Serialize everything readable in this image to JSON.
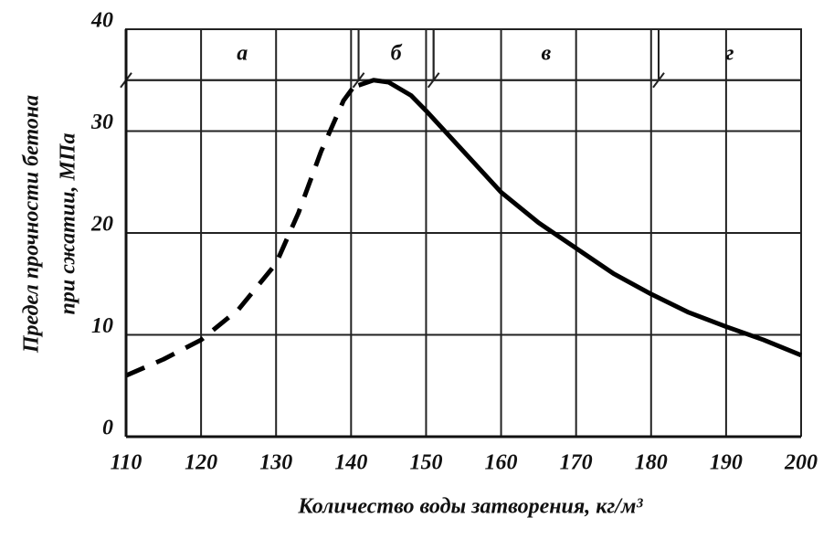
{
  "chart_data": {
    "type": "line",
    "y_label_lines": [
      "Предел прочности бетона",
      "при сжатии, МПа"
    ],
    "x_label": "Количество воды затворения, кг/м³",
    "xlim": [
      110,
      200
    ],
    "ylim": [
      0,
      40
    ],
    "xticks": [
      110,
      120,
      130,
      140,
      150,
      160,
      170,
      180,
      190,
      200
    ],
    "yticks": [
      0,
      10,
      20,
      30,
      40
    ],
    "grid": true,
    "zone_ylim": [
      35,
      40
    ],
    "zones": [
      {
        "label": "а",
        "from": 110,
        "to": 141
      },
      {
        "label": "б",
        "from": 141,
        "to": 151
      },
      {
        "label": "в",
        "from": 151,
        "to": 181
      },
      {
        "label": "г",
        "from": 181,
        "to": 200
      }
    ],
    "series": [
      {
        "color": "#000000",
        "dashed": true,
        "x": [
          110,
          115,
          120,
          125,
          130,
          133,
          136,
          139,
          141
        ],
        "values": [
          6,
          7.6,
          9.5,
          12.5,
          17,
          22,
          28,
          33,
          35
        ]
      },
      {
        "color": "#000000",
        "dashed": false,
        "x": [
          141,
          143,
          145,
          148,
          150,
          155,
          160,
          165,
          170,
          175,
          180,
          185,
          190,
          195,
          200
        ],
        "values": [
          34.5,
          35,
          34.8,
          33.5,
          32,
          28,
          24,
          21,
          18.5,
          16,
          14,
          12.2,
          10.8,
          9.5,
          8
        ]
      }
    ]
  }
}
